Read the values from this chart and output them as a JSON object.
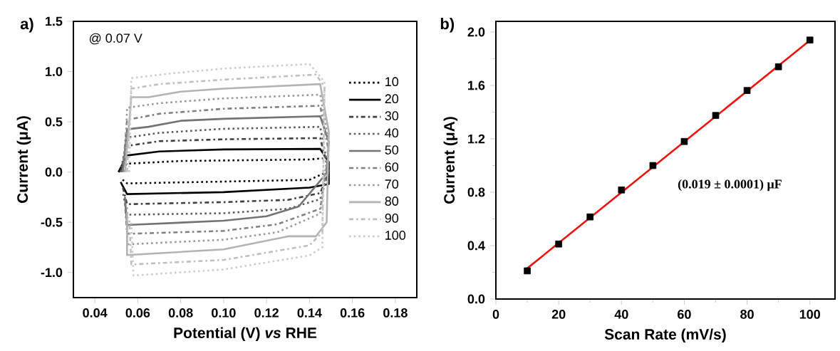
{
  "chart_data": [
    {
      "type": "line",
      "title": "a)",
      "xlabel": "Potential (V) *vs* RHE",
      "ylabel": "Current (μA)",
      "annotations": [
        "@ 0.07 V"
      ],
      "xlim": [
        0.03,
        0.19
      ],
      "ylim": [
        -1.25,
        1.5
      ],
      "xticks": [
        0.04,
        0.06,
        0.08,
        {
          "value": 0.1,
          "label": "0.10"
        },
        0.12,
        0.14,
        0.16,
        0.18
      ],
      "yticks": [
        {
          "value": -1.0,
          "label": "-1.0"
        },
        -0.5,
        {
          "value": 0.0,
          "label": "0.0"
        },
        0.5,
        {
          "value": 1.0,
          "label": "1.0"
        },
        1.5
      ],
      "legend": "right",
      "grid": false,
      "series": [
        {
          "name": "10",
          "color": "#000000",
          "line_style": "dotted",
          "x": [
            0.051,
            0.055,
            0.08,
            0.14,
            0.148,
            0.149,
            0.14,
            0.1,
            0.055,
            0.052
          ],
          "values": [
            0.0,
            0.083,
            0.11,
            0.125,
            0.14,
            0.01,
            -0.078,
            -0.095,
            -0.113,
            -0.06
          ]
        },
        {
          "name": "20",
          "color": "#000000",
          "line_style": "solid",
          "x": [
            0.051,
            0.055,
            0.07,
            0.1,
            0.145,
            0.149,
            0.149,
            0.14,
            0.1,
            0.055,
            0.052
          ],
          "values": [
            0.0,
            0.165,
            0.205,
            0.225,
            0.23,
            0.1,
            -0.12,
            -0.155,
            -0.2,
            -0.22,
            -0.1
          ]
        },
        {
          "name": "30",
          "color": "#404040",
          "line_style": "dashdot",
          "x": [
            0.052,
            0.055,
            0.07,
            0.1,
            0.145,
            0.149,
            0.145,
            0.13,
            0.1,
            0.055,
            0.053
          ],
          "values": [
            0.0,
            0.26,
            0.307,
            0.326,
            0.338,
            0.0,
            -0.21,
            -0.277,
            -0.3,
            -0.32,
            -0.15
          ]
        },
        {
          "name": "40",
          "color": "#595959",
          "line_style": "dotted",
          "x": [
            0.052,
            0.055,
            0.07,
            0.1,
            0.145,
            0.149,
            0.145,
            0.13,
            0.1,
            0.055,
            0.053
          ],
          "values": [
            0.0,
            0.343,
            0.39,
            0.43,
            0.45,
            0.0,
            -0.27,
            -0.366,
            -0.41,
            -0.425,
            -0.2
          ]
        },
        {
          "name": "50",
          "color": "#737373",
          "line_style": "solid",
          "x": [
            0.053,
            0.055,
            0.065,
            0.08,
            0.1,
            0.145,
            0.149,
            0.148,
            0.135,
            0.12,
            0.1,
            0.055,
            0.054
          ],
          "values": [
            0.0,
            0.425,
            0.45,
            0.51,
            0.53,
            0.555,
            0.3,
            -0.01,
            -0.343,
            -0.44,
            -0.485,
            -0.527,
            -0.25
          ]
        },
        {
          "name": "60",
          "color": "#808080",
          "line_style": "dashdot",
          "x": [
            0.053,
            0.055,
            0.07,
            0.1,
            0.145,
            0.149,
            0.145,
            0.125,
            0.1,
            0.055,
            0.054
          ],
          "values": [
            0.0,
            0.52,
            0.58,
            0.63,
            0.66,
            0.2,
            -0.366,
            -0.52,
            -0.586,
            -0.615,
            -0.3
          ]
        },
        {
          "name": "70",
          "color": "#999999",
          "line_style": "dotted",
          "x": [
            0.054,
            0.055,
            0.07,
            0.1,
            0.145,
            0.149,
            0.145,
            0.125,
            0.1,
            0.055,
            0.055
          ],
          "values": [
            0.0,
            0.64,
            0.685,
            0.733,
            0.77,
            0.3,
            -0.414,
            -0.6,
            -0.674,
            -0.72,
            -0.35
          ]
        },
        {
          "name": "80",
          "color": "#b3b3b3",
          "line_style": "solid",
          "x": [
            0.054,
            0.057,
            0.065,
            0.08,
            0.1,
            0.145,
            0.149,
            0.148,
            0.143,
            0.13,
            0.1,
            0.055,
            0.055
          ],
          "values": [
            0.0,
            0.745,
            0.745,
            0.8,
            0.83,
            0.875,
            0.4,
            -0.5,
            -0.64,
            -0.64,
            -0.77,
            -0.827,
            -0.4
          ]
        },
        {
          "name": "90",
          "color": "#bfbfbf",
          "line_style": "dashdot",
          "x": [
            0.055,
            0.057,
            0.07,
            0.1,
            0.143,
            0.147,
            0.146,
            0.14,
            0.1,
            0.057,
            0.056
          ],
          "values": [
            0.0,
            0.83,
            0.875,
            0.92,
            0.97,
            0.85,
            -0.6,
            -0.73,
            -0.875,
            -0.92,
            -0.45
          ]
        },
        {
          "name": "100",
          "color": "#cccccc",
          "line_style": "dotted",
          "x": [
            0.056,
            0.057,
            0.075,
            0.1,
            0.14,
            0.147,
            0.146,
            0.14,
            0.1,
            0.058,
            0.057
          ],
          "values": [
            0.0,
            0.935,
            0.98,
            1.03,
            1.075,
            0.9,
            -0.75,
            -0.83,
            -0.97,
            -1.03,
            -0.5
          ]
        }
      ]
    },
    {
      "type": "scatter",
      "title": "b)",
      "xlabel": "Scan Rate (mV/s)",
      "ylabel": "Current (μA)",
      "annotations": [
        "(0.019 ± 0.0001) μF"
      ],
      "xlim": [
        0,
        108
      ],
      "ylim": [
        0,
        2.08
      ],
      "xticks": [
        0,
        20,
        40,
        60,
        80,
        100
      ],
      "yticks": [
        {
          "value": 0.0,
          "label": "0.0"
        },
        0.4,
        0.8,
        1.2,
        1.6,
        {
          "value": 2.0,
          "label": "2.0"
        }
      ],
      "legend": false,
      "grid": false,
      "series": [
        {
          "type": "scatter",
          "color": "#000000",
          "marker": "square",
          "x": [
            10,
            20,
            30,
            40,
            50,
            60,
            70,
            80,
            90,
            100
          ],
          "values": [
            0.211,
            0.412,
            0.615,
            0.817,
            1.0,
            1.18,
            1.375,
            1.562,
            1.74,
            1.94
          ]
        },
        {
          "type": "line",
          "color": "#ee1111",
          "line_style": "solid",
          "marker": "none",
          "x": [
            10,
            100
          ],
          "values": [
            0.23,
            1.937
          ]
        }
      ]
    }
  ]
}
